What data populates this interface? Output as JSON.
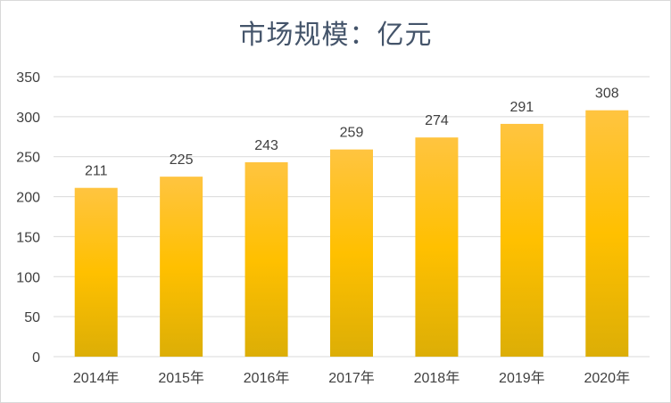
{
  "chart_data": {
    "type": "bar",
    "title": "市场规模：亿元",
    "categories": [
      "2014年",
      "2015年",
      "2016年",
      "2017年",
      "2018年",
      "2019年",
      "2020年"
    ],
    "values": [
      211,
      225,
      243,
      259,
      274,
      291,
      308
    ],
    "ylim": [
      0,
      350
    ],
    "yticks": [
      0,
      50,
      100,
      150,
      200,
      250,
      300,
      350
    ],
    "grid": true,
    "data_labels": true,
    "colors": {
      "bar_top": "#ffc440",
      "bar_mid": "#ffc000",
      "bar_bottom": "#dcae06",
      "grid": "#d9d9d9",
      "text": "#404040",
      "title": "#44546a"
    }
  }
}
